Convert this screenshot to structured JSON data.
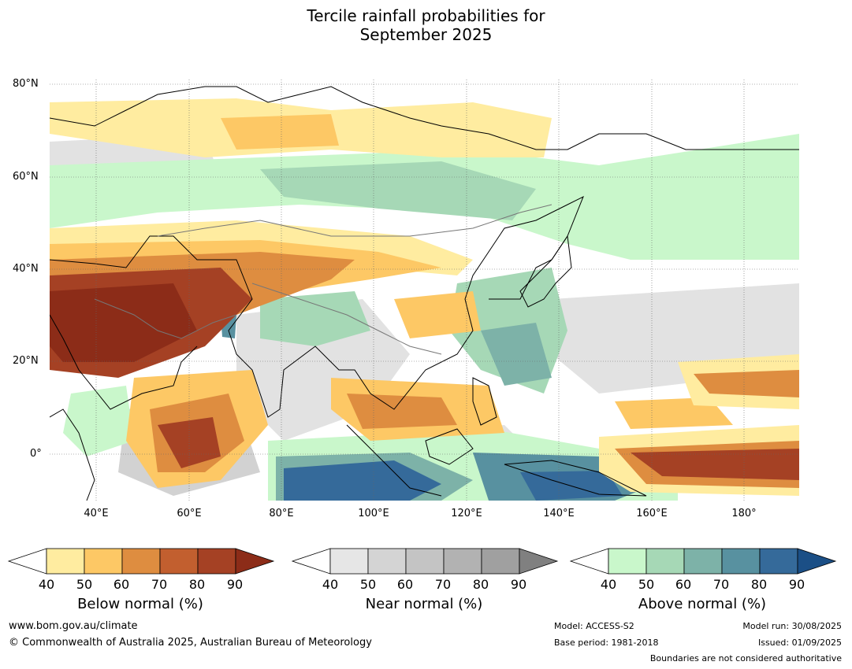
{
  "title": {
    "line1": "Tercile rainfall probabilities for",
    "line2": "September 2025"
  },
  "map": {
    "lat_labels": [
      "80°N",
      "60°N",
      "40°N",
      "20°N",
      "0°"
    ],
    "lon_labels": [
      "40°E",
      "60°E",
      "80°E",
      "100°E",
      "120°E",
      "140°E",
      "160°E",
      "180°"
    ]
  },
  "colorbars": [
    {
      "title": "Below normal (%)",
      "ticks": [
        "40",
        "50",
        "60",
        "70",
        "80",
        "90"
      ],
      "colors": [
        "#ffffff",
        "#ffeca0",
        "#fdc865",
        "#de8d40",
        "#c25f2f",
        "#a54124",
        "#8c2c18"
      ]
    },
    {
      "title": "Near normal (%)",
      "ticks": [
        "40",
        "50",
        "60",
        "70",
        "80",
        "90"
      ],
      "colors": [
        "#ffffff",
        "#e6e6e6",
        "#d4d4d4",
        "#c4c4c4",
        "#b2b2b2",
        "#a0a0a0",
        "#808080"
      ]
    },
    {
      "title": "Above normal (%)",
      "ticks": [
        "40",
        "50",
        "60",
        "70",
        "80",
        "90"
      ],
      "colors": [
        "#ffffff",
        "#c9f7cb",
        "#a6d8b6",
        "#7db2a8",
        "#5891a0",
        "#356a9a",
        "#1b4f86"
      ]
    }
  ],
  "footer": {
    "website": "www.bom.gov.au/climate",
    "copyright": "© Commonwealth of Australia 2025, Australian Bureau of Meteorology",
    "model": "Model: ACCESS-S2",
    "base_period": "Base period: 1981-2018",
    "model_run": "Model run: 30/08/2025",
    "issued": "Issued: 01/09/2025",
    "disclaimer": "Boundaries are not considered authoritative"
  }
}
